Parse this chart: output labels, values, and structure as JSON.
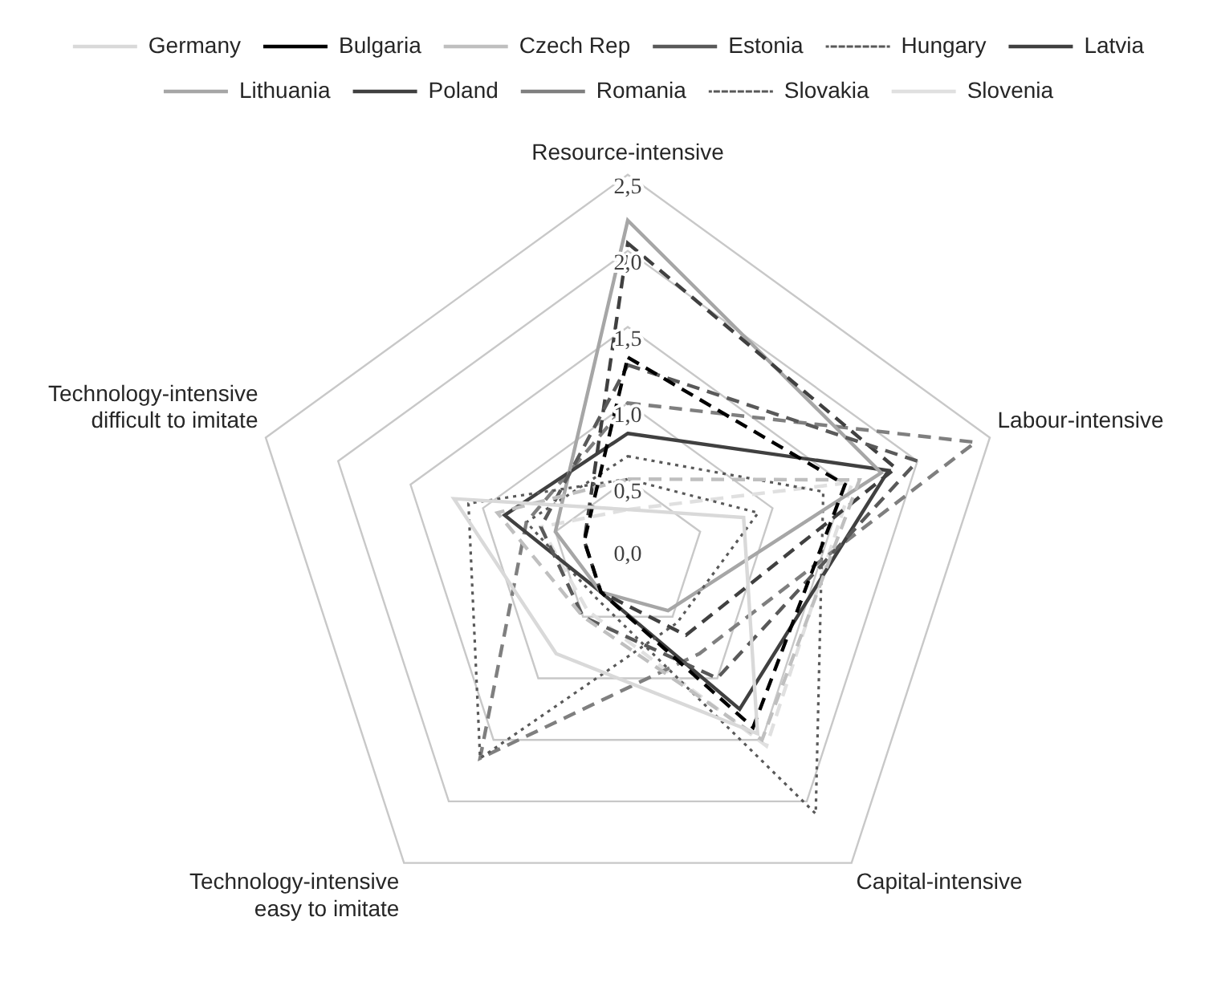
{
  "chart_data": {
    "type": "radar",
    "categories": [
      "Resource-intensive",
      "Labour-intensive",
      "Capital-intensive",
      "Technology-intensive easy to imitate",
      "Technology-intensive difficult to imitate"
    ],
    "ylim": [
      0,
      2.5
    ],
    "yticks": [
      {
        "value": 0,
        "label": "0,0"
      },
      {
        "value": 0.5,
        "label": "0,5"
      },
      {
        "value": 1,
        "label": "1,0"
      },
      {
        "value": 1.5,
        "label": "1,5"
      },
      {
        "value": 2,
        "label": "2,0"
      },
      {
        "value": 2.5,
        "label": "2,5"
      }
    ],
    "grid": true,
    "legend": "top",
    "marker": "none",
    "series": [
      {
        "name": "Germany",
        "color": "#d9d9d9",
        "line_style": "solid",
        "values": [
          0.3,
          0.8,
          1.45,
          0.8,
          1.2
        ]
      },
      {
        "name": "Bulgaria",
        "color": "#000000",
        "line_style": "dashed",
        "values": [
          1.3,
          1.5,
          1.4,
          0.3,
          0.3
        ]
      },
      {
        "name": "Czech Rep",
        "color": "#bfbfbf",
        "line_style": "dashed",
        "values": [
          0.5,
          1.6,
          1.5,
          0.5,
          0.9
        ]
      },
      {
        "name": "Estonia",
        "color": "#595959",
        "line_style": "dashed",
        "values": [
          1.25,
          2.0,
          1.0,
          0.5,
          0.6
        ]
      },
      {
        "name": "Hungary",
        "color": "#595959",
        "line_style": "dotted",
        "values": [
          0.5,
          0.9,
          0.55,
          1.65,
          1.1
        ]
      },
      {
        "name": "Latvia",
        "color": "#404040",
        "line_style": "dashed",
        "values": [
          2.05,
          1.85,
          0.65,
          0.3,
          0.3
        ]
      },
      {
        "name": "Lithuania",
        "color": "#a6a6a6",
        "line_style": "solid",
        "values": [
          2.2,
          1.75,
          0.45,
          0.3,
          0.5
        ]
      },
      {
        "name": "Poland",
        "color": "#404040",
        "line_style": "solid",
        "values": [
          0.8,
          1.8,
          1.25,
          0.3,
          0.85
        ]
      },
      {
        "name": "Romania",
        "color": "#7f7f7f",
        "line_style": "dashed",
        "values": [
          1.0,
          2.4,
          0.8,
          1.65,
          0.7
        ]
      },
      {
        "name": "Slovakia",
        "color": "#595959",
        "line_style": "dotted",
        "values": [
          0.65,
          1.35,
          2.1,
          0.35,
          0.7
        ]
      },
      {
        "name": "Slovenia",
        "color": "#e0e0e0",
        "line_style": "dashed",
        "values": [
          0.3,
          1.55,
          1.55,
          0.45,
          0.6
        ]
      }
    ]
  }
}
